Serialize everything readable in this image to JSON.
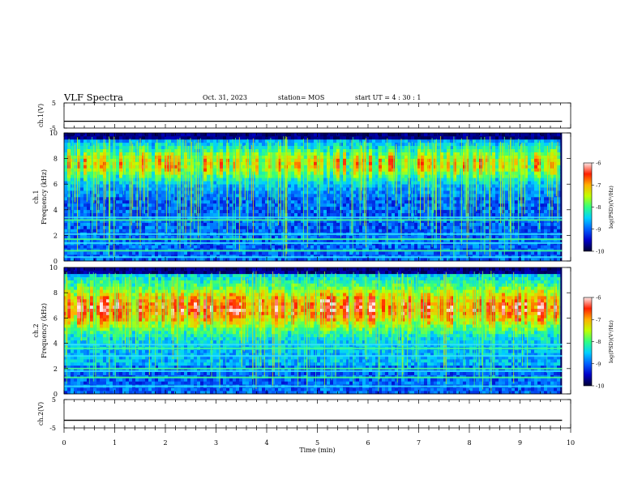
{
  "header": {
    "title": "VLF Spectra",
    "date": "Oct. 31, 2023",
    "station": "station= MOS",
    "start_time": "start  UT =   4 : 30 : 1"
  },
  "chart_data": [
    {
      "type": "line",
      "panel": "ch1-waveform",
      "ylabel": "ch.1(V)",
      "ylim": [
        -5,
        5
      ],
      "yticks": [
        5,
        -5
      ],
      "x": [
        0,
        9.83
      ],
      "values": [
        -2.3,
        -2.3
      ]
    },
    {
      "type": "heatmap",
      "panel": "ch1-spectrogram",
      "ylabel": "ch.1\nFrequency (kHz)",
      "ylim": [
        0,
        10
      ],
      "yticks": [
        0,
        2,
        4,
        6,
        8,
        10
      ],
      "xlim": [
        0,
        10
      ],
      "data_extent_min": 9.83,
      "colorbar": {
        "label": "log(PSD)(V²/Hz)",
        "range": [
          -10,
          -6
        ],
        "ticks": [
          -6,
          -7,
          -8,
          -9,
          -10
        ],
        "colors": [
          "#000033",
          "#0000c8",
          "#0060ff",
          "#00d0ff",
          "#30ff80",
          "#c0ff00",
          "#ffb000",
          "#ff2000",
          "#ffe8e8"
        ]
      },
      "bands_khz": [
        0.3,
        0.8,
        1.4,
        1.7,
        2.1,
        3.2,
        3.4
      ]
    },
    {
      "type": "heatmap",
      "panel": "ch2-spectrogram",
      "ylabel": "ch.2\nFrequency (kHz)",
      "ylim": [
        0,
        10
      ],
      "yticks": [
        0,
        2,
        4,
        6,
        8,
        10
      ],
      "xlim": [
        0,
        10
      ],
      "data_extent_min": 9.83,
      "colorbar": {
        "label": "log(PSD)(V²/Hz)",
        "range": [
          -10,
          -6
        ],
        "ticks": [
          -6,
          -7,
          -8,
          -9,
          -10
        ],
        "colors": [
          "#000033",
          "#0000c8",
          "#0060ff",
          "#00d0ff",
          "#30ff80",
          "#c0ff00",
          "#ffb000",
          "#ff2000",
          "#ffe8e8"
        ]
      },
      "bands_khz": [
        0.6,
        1.3,
        1.8,
        2.0,
        3.0,
        3.6,
        3.9
      ]
    },
    {
      "type": "line",
      "panel": "ch2-waveform",
      "ylabel": "ch.2(V)",
      "ylim": [
        -5,
        5
      ],
      "yticks": [
        5,
        -5
      ],
      "x": [
        0,
        9.83
      ],
      "values": [
        -2.3,
        -2.3
      ]
    }
  ],
  "xaxis": {
    "label": "Time (min)",
    "ticks": [
      0,
      1,
      2,
      3,
      4,
      5,
      6,
      7,
      8,
      9,
      10
    ],
    "range": [
      0,
      10
    ]
  }
}
